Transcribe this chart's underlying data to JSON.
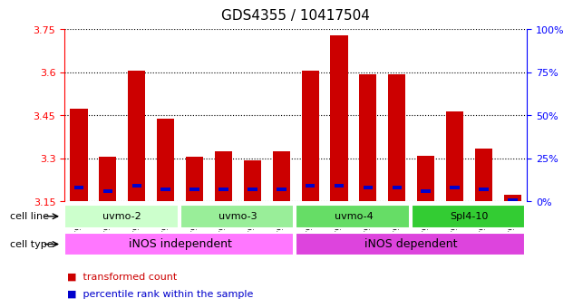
{
  "title": "GDS4355 / 10417504",
  "samples": [
    "GSM796425",
    "GSM796426",
    "GSM796427",
    "GSM796428",
    "GSM796429",
    "GSM796430",
    "GSM796431",
    "GSM796432",
    "GSM796417",
    "GSM796418",
    "GSM796419",
    "GSM796420",
    "GSM796421",
    "GSM796422",
    "GSM796423",
    "GSM796424"
  ],
  "red_values": [
    3.475,
    3.305,
    3.605,
    3.44,
    3.305,
    3.325,
    3.295,
    3.325,
    3.605,
    3.73,
    3.595,
    3.595,
    3.31,
    3.465,
    3.335,
    3.175
  ],
  "blue_percentiles": [
    8,
    6,
    9,
    7,
    7,
    7,
    7,
    7,
    9,
    9,
    8,
    8,
    6,
    8,
    7,
    1
  ],
  "ymin": 3.15,
  "ymax": 3.75,
  "yticks_left": [
    3.15,
    3.3,
    3.45,
    3.6,
    3.75
  ],
  "yticks_right": [
    0,
    25,
    50,
    75,
    100
  ],
  "bar_color_red": "#cc0000",
  "bar_color_blue": "#0000cc",
  "bar_width": 0.6,
  "cell_lines": [
    {
      "label": "uvmo-2",
      "start": 0,
      "end": 3,
      "color": "#ccffcc"
    },
    {
      "label": "uvmo-3",
      "start": 4,
      "end": 7,
      "color": "#99ee99"
    },
    {
      "label": "uvmo-4",
      "start": 8,
      "end": 11,
      "color": "#66dd66"
    },
    {
      "label": "Spl4-10",
      "start": 12,
      "end": 15,
      "color": "#33cc33"
    }
  ],
  "cell_types": [
    {
      "label": "iNOS independent",
      "start": 0,
      "end": 7,
      "color": "#ff77ff"
    },
    {
      "label": "iNOS dependent",
      "start": 8,
      "end": 15,
      "color": "#dd44dd"
    }
  ],
  "title_fontsize": 11,
  "tick_fontsize": 8,
  "sample_fontsize": 6.5
}
